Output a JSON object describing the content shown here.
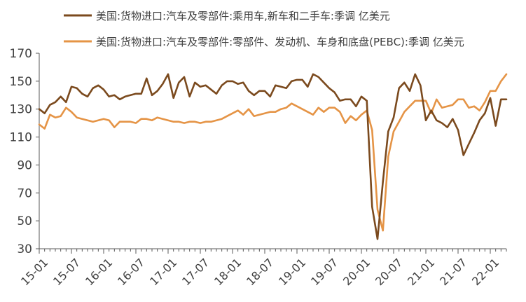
{
  "chart_data": {
    "type": "line",
    "title": "",
    "xlabel": "",
    "ylabel": "",
    "ylim": [
      30,
      170
    ],
    "yticks": [
      30,
      50,
      70,
      90,
      110,
      130,
      150,
      170
    ],
    "xtick_labels": [
      "15-01",
      "15-07",
      "16-01",
      "16-07",
      "17-01",
      "17-07",
      "18-01",
      "18-07",
      "19-01",
      "19-07",
      "20-01",
      "20-07",
      "21-01",
      "21-07",
      "22-01"
    ],
    "grid": false,
    "legend_position": "top",
    "x": [
      "15-01",
      "15-02",
      "15-03",
      "15-04",
      "15-05",
      "15-06",
      "15-07",
      "15-08",
      "15-09",
      "15-10",
      "15-11",
      "15-12",
      "16-01",
      "16-02",
      "16-03",
      "16-04",
      "16-05",
      "16-06",
      "16-07",
      "16-08",
      "16-09",
      "16-10",
      "16-11",
      "16-12",
      "17-01",
      "17-02",
      "17-03",
      "17-04",
      "17-05",
      "17-06",
      "17-07",
      "17-08",
      "17-09",
      "17-10",
      "17-11",
      "17-12",
      "18-01",
      "18-02",
      "18-03",
      "18-04",
      "18-05",
      "18-06",
      "18-07",
      "18-08",
      "18-09",
      "18-10",
      "18-11",
      "18-12",
      "19-01",
      "19-02",
      "19-03",
      "19-04",
      "19-05",
      "19-06",
      "19-07",
      "19-08",
      "19-09",
      "19-10",
      "19-11",
      "19-12",
      "20-01",
      "20-02",
      "20-03",
      "20-04",
      "20-05",
      "20-06",
      "20-07",
      "20-08",
      "20-09",
      "20-10",
      "20-11",
      "20-12",
      "21-01",
      "21-02",
      "21-03",
      "21-04",
      "21-05",
      "21-06",
      "21-07",
      "21-08",
      "21-09",
      "21-10",
      "21-11",
      "21-12",
      "22-01",
      "22-02",
      "22-03",
      "22-04"
    ],
    "series": [
      {
        "name": "美国:货物进口:汽车及零部件:乘用车,新车和二手车:季调 亿美元",
        "color": "#7B4A1E",
        "values": [
          130,
          127,
          133,
          135,
          139,
          135,
          146,
          145,
          141,
          139,
          145,
          147,
          144,
          139,
          140,
          137,
          139,
          140,
          141,
          141,
          152,
          140,
          143,
          148,
          155,
          138,
          149,
          153,
          139,
          149,
          146,
          147,
          144,
          141,
          147,
          150,
          150,
          148,
          149,
          143,
          140,
          143,
          143,
          139,
          147,
          146,
          145,
          150,
          151,
          151,
          146,
          155,
          153,
          149,
          145,
          142,
          136,
          137,
          137,
          132,
          139,
          136,
          60,
          37,
          78,
          114,
          124,
          145,
          149,
          143,
          155,
          147,
          122,
          129,
          122,
          120,
          117,
          123,
          115,
          97,
          105,
          113,
          122,
          127,
          138,
          118,
          137,
          137
        ]
      },
      {
        "name": "美国:货物进口:汽车及零部件:零部件、发动机、车身和底盘(PEBC):季调 亿美元",
        "color": "#E59446",
        "values": [
          119,
          116,
          126,
          124,
          125,
          131,
          128,
          124,
          123,
          122,
          121,
          122,
          123,
          122,
          117,
          121,
          121,
          121,
          120,
          123,
          123,
          122,
          124,
          123,
          122,
          121,
          121,
          120,
          121,
          121,
          120,
          121,
          121,
          122,
          123,
          125,
          127,
          129,
          126,
          130,
          125,
          126,
          127,
          128,
          128,
          130,
          131,
          134,
          132,
          130,
          128,
          126,
          131,
          128,
          131,
          131,
          128,
          120,
          125,
          122,
          126,
          129,
          115,
          58,
          43,
          96,
          114,
          121,
          128,
          132,
          136,
          136,
          136,
          127,
          137,
          131,
          132,
          133,
          137,
          137,
          131,
          132,
          129,
          135,
          143,
          143,
          150,
          155
        ]
      }
    ]
  }
}
